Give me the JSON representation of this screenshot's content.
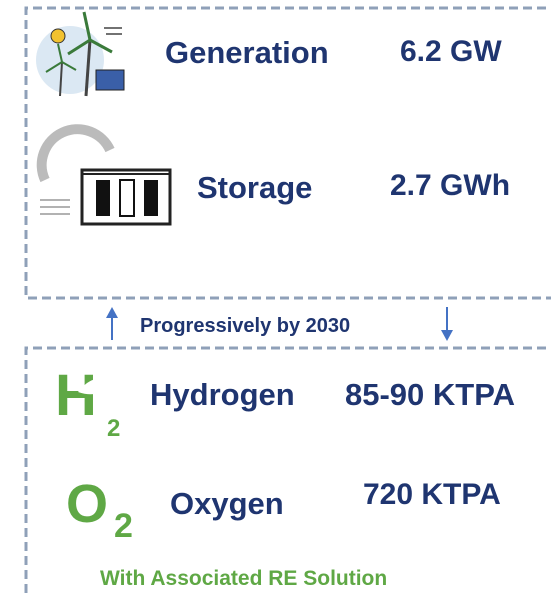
{
  "capacity": {
    "generation": {
      "label": "Generation",
      "value": "6.2 GW"
    },
    "storage": {
      "label": "Storage",
      "value": "2.7 GWh"
    }
  },
  "link": {
    "label": "Progressively by 2030"
  },
  "outputs": {
    "hydrogen": {
      "symbol": "H",
      "subscript": "2",
      "label": "Hydrogen",
      "value": "85-90 KTPA"
    },
    "oxygen": {
      "symbol": "O",
      "subscript": "2",
      "label": "Oxygen",
      "value": "720 KTPA"
    }
  },
  "footer": {
    "label": "With Associated RE Solution"
  }
}
